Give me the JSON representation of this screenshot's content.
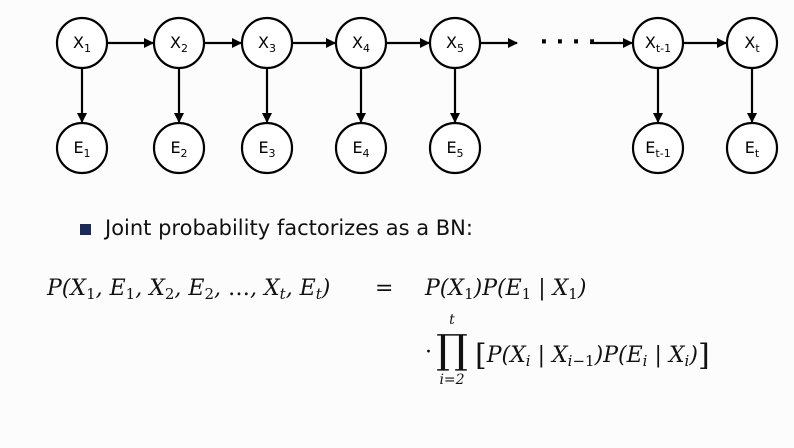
{
  "diagram": {
    "hidden_nodes": [
      {
        "base": "X",
        "sub": "1"
      },
      {
        "base": "X",
        "sub": "2"
      },
      {
        "base": "X",
        "sub": "3"
      },
      {
        "base": "X",
        "sub": "4"
      },
      {
        "base": "X",
        "sub": "5"
      },
      {
        "base": "X",
        "sub": "t-1"
      },
      {
        "base": "X",
        "sub": "t"
      }
    ],
    "evidence_nodes": [
      {
        "base": "E",
        "sub": "1"
      },
      {
        "base": "E",
        "sub": "2"
      },
      {
        "base": "E",
        "sub": "3"
      },
      {
        "base": "E",
        "sub": "4"
      },
      {
        "base": "E",
        "sub": "5"
      },
      {
        "base": "E",
        "sub": "t-1"
      },
      {
        "base": "E",
        "sub": "t"
      }
    ],
    "ellipsis": "· · · ·"
  },
  "bullet": {
    "text": "Joint probability factorizes as a BN:"
  },
  "equation": {
    "relation": "=",
    "dot": "·",
    "prod_symbol": "∏",
    "prod_upper": "t",
    "prod_lower": "i=2"
  }
}
